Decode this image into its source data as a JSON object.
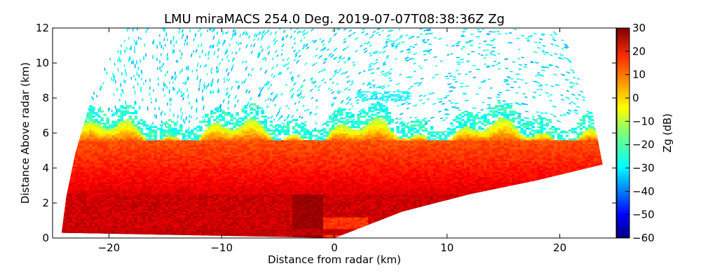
{
  "chart_data": {
    "type": "heatmap",
    "subtype": "radar RHI scan (pcolormesh)",
    "title": "LMU miraMACS 254.0 Deg. 2019-07-07T08:38:36Z  Zg",
    "xlabel": "Distance from radar (km)",
    "ylabel": "Distance Above radar  (km)",
    "colorbar_label": "Zg (dB)",
    "xlim": [
      -25,
      25
    ],
    "ylim": [
      0,
      12
    ],
    "x_ticks": [
      -20,
      -10,
      0,
      10,
      20
    ],
    "x_tick_labels": [
      "−20",
      "−10",
      "0",
      "10",
      "20"
    ],
    "y_ticks": [
      0,
      2,
      4,
      6,
      8,
      10,
      12
    ],
    "y_tick_labels": [
      "0",
      "2",
      "4",
      "6",
      "8",
      "10",
      "12"
    ],
    "colorbar_range": [
      -60,
      30
    ],
    "colorbar_ticks": [
      30,
      20,
      10,
      0,
      -10,
      -20,
      -30,
      -40,
      -50,
      -60
    ],
    "colorbar_tick_labels": [
      "30",
      "20",
      "10",
      "0",
      "−10",
      "−20",
      "−30",
      "−40",
      "−50",
      "−60"
    ],
    "colormap": "jet",
    "grid": false,
    "scan": {
      "azimuth_deg": 254.0,
      "timestamp": "2019-07-07T08:38:36Z",
      "field": "Zg",
      "left_edge_points_km": [
        [
          -24.2,
          0.3
        ],
        [
          -23.8,
          2.3
        ],
        [
          -23.0,
          4.8
        ],
        [
          -21.8,
          7.5
        ],
        [
          -20.5,
          9.5
        ],
        [
          -19.0,
          11.2
        ],
        [
          -18.3,
          12
        ]
      ],
      "right_edge_points_km": [
        [
          0,
          0
        ],
        [
          6,
          1.5
        ],
        [
          12,
          2.5
        ],
        [
          18,
          3.3
        ],
        [
          23.8,
          4.2
        ],
        [
          22.8,
          7.5
        ],
        [
          21.5,
          9.5
        ],
        [
          20.2,
          11.5
        ],
        [
          19.8,
          12
        ]
      ]
    },
    "layers": [
      {
        "name": "high-reflectivity low layer",
        "bottom_km": 0.2,
        "top_km": 2.5,
        "zg_db_range": [
          15,
          28
        ]
      },
      {
        "name": "main cloud layer",
        "bottom_km": 2.5,
        "top_km": 5.5,
        "zg_db_range": [
          5,
          20
        ]
      },
      {
        "name": "cloud top gradient",
        "bottom_km": 5.5,
        "top_km": 7.0,
        "zg_db_range": [
          -25,
          5
        ]
      },
      {
        "name": "noise speckle above cloud",
        "bottom_km": 7.0,
        "top_km": 12,
        "zg_db_range": [
          -35,
          -20
        ]
      },
      {
        "name": "elevated echo patch",
        "x_range_km": [
          2.0,
          6.8
        ],
        "y_range_km": [
          7.9,
          8.4
        ],
        "zg_db_range": [
          -30,
          -22
        ]
      },
      {
        "name": "near-radar bright patch",
        "x_range_km": [
          -1.0,
          3.0
        ],
        "y_range_km": [
          0,
          1.2
        ],
        "zg_db_range": [
          12,
          18
        ]
      }
    ]
  }
}
